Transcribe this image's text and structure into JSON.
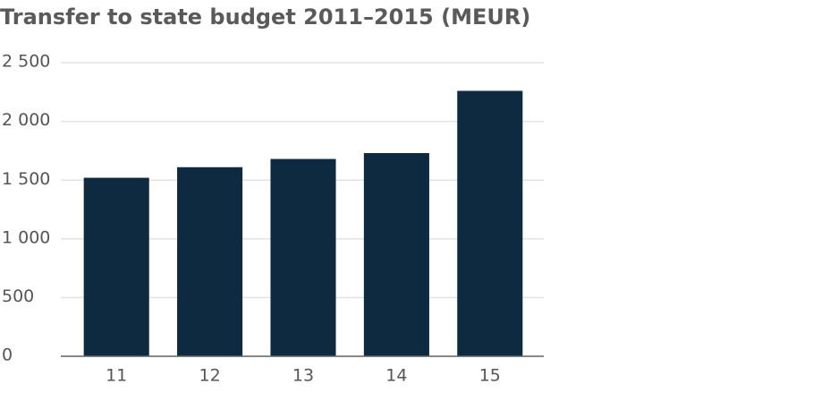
{
  "chart_data": {
    "type": "bar",
    "title": "Transfer to state budget 2011–2015 (MEUR)",
    "categories": [
      "11",
      "12",
      "13",
      "14",
      "15"
    ],
    "values": [
      1520,
      1610,
      1680,
      1730,
      2260
    ],
    "color": "#0d2a40",
    "ylim": [
      0,
      2500
    ],
    "yticks": [
      0,
      500,
      {
        "value": 1000,
        "label": "1 000"
      },
      {
        "value": 1500,
        "label": "1 500"
      },
      {
        "value": 2000,
        "label": "2 000"
      },
      {
        "value": 2500,
        "label": "2 500"
      }
    ],
    "grid": true
  }
}
